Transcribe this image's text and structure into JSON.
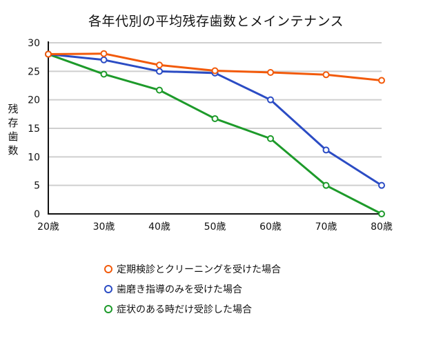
{
  "chart_data": {
    "type": "line",
    "title": "各年代別の平均残存歯数とメインテナンス",
    "xlabel": "",
    "ylabel": "残存歯数",
    "categories": [
      "20歳",
      "30歳",
      "40歳",
      "50歳",
      "60歳",
      "70歳",
      "80歳"
    ],
    "yticks": [
      0,
      5,
      10,
      15,
      20,
      25,
      30
    ],
    "ylim": [
      0,
      30
    ],
    "grid": true,
    "legend_position": "bottom",
    "series": [
      {
        "name": "定期検診とクリーニングを受けた場合",
        "color": "#f25a0a",
        "values": [
          28,
          28.1,
          26.1,
          25.1,
          24.8,
          24.4,
          23.4
        ]
      },
      {
        "name": "歯磨き指導のみを受けた場合",
        "color": "#2b4cc4",
        "values": [
          28,
          27,
          25,
          24.7,
          20,
          11.2,
          5
        ]
      },
      {
        "name": "症状のある時だけ受診した場合",
        "color": "#1d9a2a",
        "values": [
          28,
          24.5,
          21.7,
          16.7,
          13.2,
          5,
          0
        ]
      }
    ]
  },
  "title": "各年代別の平均残存歯数とメインテナンス",
  "ylabel_chars": [
    "残",
    "存",
    "歯",
    "数"
  ],
  "legend": [
    {
      "label": "定期検診とクリーニングを受けた場合",
      "color": "#f25a0a"
    },
    {
      "label": "歯磨き指導のみを受けた場合",
      "color": "#2b4cc4"
    },
    {
      "label": "症状のある時だけ受診した場合",
      "color": "#1d9a2a"
    }
  ]
}
